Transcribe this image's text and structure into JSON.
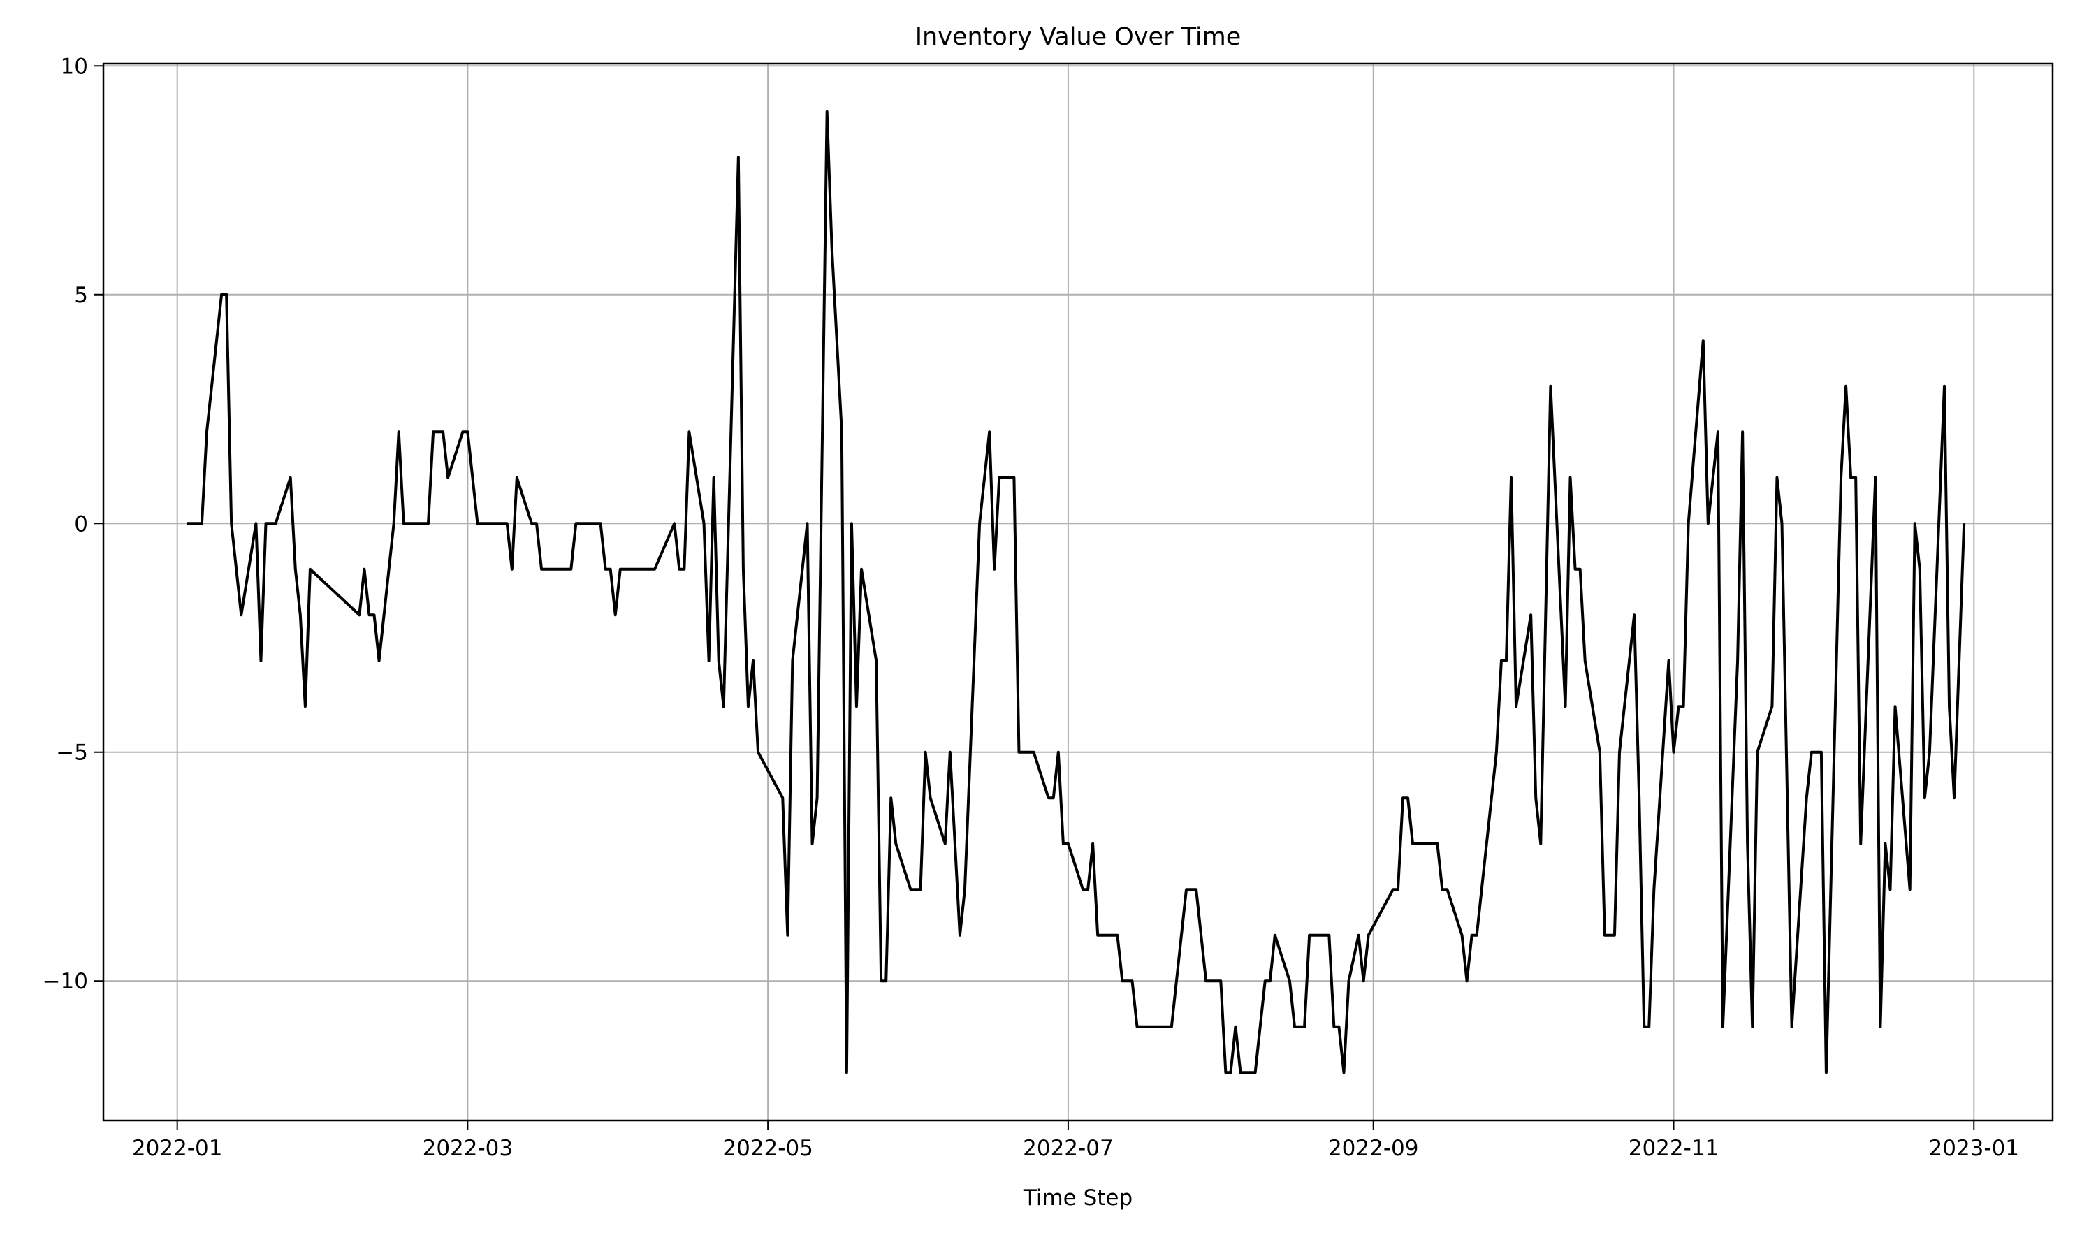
{
  "chart_data": {
    "type": "line",
    "title": "Inventory Value Over Time",
    "xlabel": "Time Step",
    "x": [
      2,
      5,
      6,
      9,
      10,
      11,
      13,
      16,
      17,
      18,
      20,
      23,
      24,
      25,
      26,
      27,
      37,
      38,
      39,
      40,
      41,
      44,
      45,
      46,
      51,
      52,
      54,
      55,
      58,
      59,
      61,
      67,
      68,
      69,
      72,
      73,
      74,
      80,
      81,
      86,
      87,
      88,
      89,
      90,
      97,
      101,
      102,
      103,
      104,
      107,
      108,
      109,
      110,
      111,
      114,
      115,
      116,
      117,
      118,
      123,
      124,
      125,
      128,
      129,
      130,
      132,
      133,
      135,
      136,
      137,
      138,
      139,
      142,
      143,
      144,
      145,
      146,
      149,
      151,
      152,
      153,
      156,
      157,
      159,
      160,
      163,
      165,
      166,
      167,
      170,
      171,
      174,
      177,
      178,
      179,
      180,
      181,
      184,
      185,
      186,
      187,
      191,
      192,
      194,
      195,
      202,
      205,
      207,
      209,
      212,
      213,
      214,
      215,
      216,
      219,
      221,
      222,
      223,
      226,
      227,
      229,
      230,
      234,
      235,
      236,
      237,
      238,
      240,
      241,
      242,
      247,
      248,
      249,
      250,
      251,
      256,
      257,
      258,
      261,
      262,
      263,
      264,
      268,
      269,
      270,
      271,
      272,
      275,
      276,
      277,
      279,
      282,
      283,
      284,
      285,
      286,
      289,
      290,
      292,
      293,
      296,
      297,
      298,
      299,
      300,
      303,
      304,
      305,
      306,
      307,
      310,
      311,
      313,
      314,
      317,
      318,
      319,
      320,
      321,
      324,
      325,
      326,
      328,
      331,
      332,
      334,
      335,
      338,
      339,
      340,
      341,
      342,
      345,
      346,
      347,
      348,
      349,
      352,
      353,
      354,
      355,
      356,
      359,
      360,
      361,
      363
    ],
    "series": [
      {
        "name": "Inventory",
        "color": "#000000",
        "values": [
          0,
          0,
          2,
          5,
          5,
          0,
          -2,
          0,
          -3,
          0,
          0,
          1,
          -1,
          -2,
          -4,
          -1,
          -2,
          -1,
          -2,
          -2,
          -3,
          0,
          2,
          0,
          0,
          2,
          2,
          1,
          2,
          2,
          0,
          0,
          -1,
          1,
          0,
          0,
          -1,
          -1,
          0,
          0,
          -1,
          -1,
          -2,
          -1,
          -1,
          0,
          -1,
          -1,
          2,
          0,
          -3,
          1,
          -3,
          -4,
          8,
          -1,
          -4,
          -3,
          -5,
          -6,
          -9,
          -3,
          0,
          -7,
          -6,
          9,
          6,
          2,
          -12,
          0,
          -4,
          -1,
          -3,
          -10,
          -10,
          -6,
          -7,
          -8,
          -8,
          -5,
          -6,
          -7,
          -5,
          -9,
          -8,
          0,
          2,
          -1,
          1,
          1,
          -5,
          -5,
          -6,
          -6,
          -5,
          -7,
          -7,
          -8,
          -8,
          -7,
          -9,
          -9,
          -10,
          -10,
          -11,
          -11,
          -8,
          -8,
          -10,
          -10,
          -12,
          -12,
          -11,
          -12,
          -12,
          -10,
          -10,
          -9,
          -10,
          -11,
          -11,
          -9,
          -9,
          -11,
          -11,
          -12,
          -10,
          -9,
          -10,
          -9,
          -8,
          -8,
          -6,
          -6,
          -7,
          -7,
          -8,
          -8,
          -9,
          -10,
          -9,
          -9,
          -5,
          -3,
          -3,
          1,
          -4,
          -2,
          -6,
          -7,
          3,
          -4,
          1,
          -1,
          -1,
          -3,
          -5,
          -9,
          -9,
          -5,
          -2,
          -6,
          -11,
          -11,
          -8,
          -3,
          -5,
          -4,
          -4,
          0,
          4,
          0,
          2,
          -11,
          -3,
          2,
          -7,
          -11,
          -5,
          -4,
          1,
          0,
          -11,
          -6,
          -5,
          -5,
          -12,
          1,
          3,
          1,
          1,
          -7,
          1,
          -11,
          -7,
          -8,
          -4,
          -8,
          0,
          -1,
          -6,
          -5,
          3,
          -4,
          -6,
          0
        ]
      }
    ],
    "xlim": [
      -15,
      381
    ],
    "xticks": [
      {
        "value": 0,
        "label": "2022-01"
      },
      {
        "value": 59,
        "label": "2022-03"
      },
      {
        "value": 120,
        "label": "2022-05"
      },
      {
        "value": 181,
        "label": "2022-07"
      },
      {
        "value": 243,
        "label": "2022-09"
      },
      {
        "value": 304,
        "label": "2022-11"
      },
      {
        "value": 365,
        "label": "2023-01"
      }
    ],
    "ylim": [
      -13.05,
      10.05
    ],
    "yticks": [
      {
        "value": -10,
        "label": "−10"
      },
      {
        "value": -5,
        "label": "−5"
      },
      0,
      5,
      10
    ],
    "grid": true
  }
}
